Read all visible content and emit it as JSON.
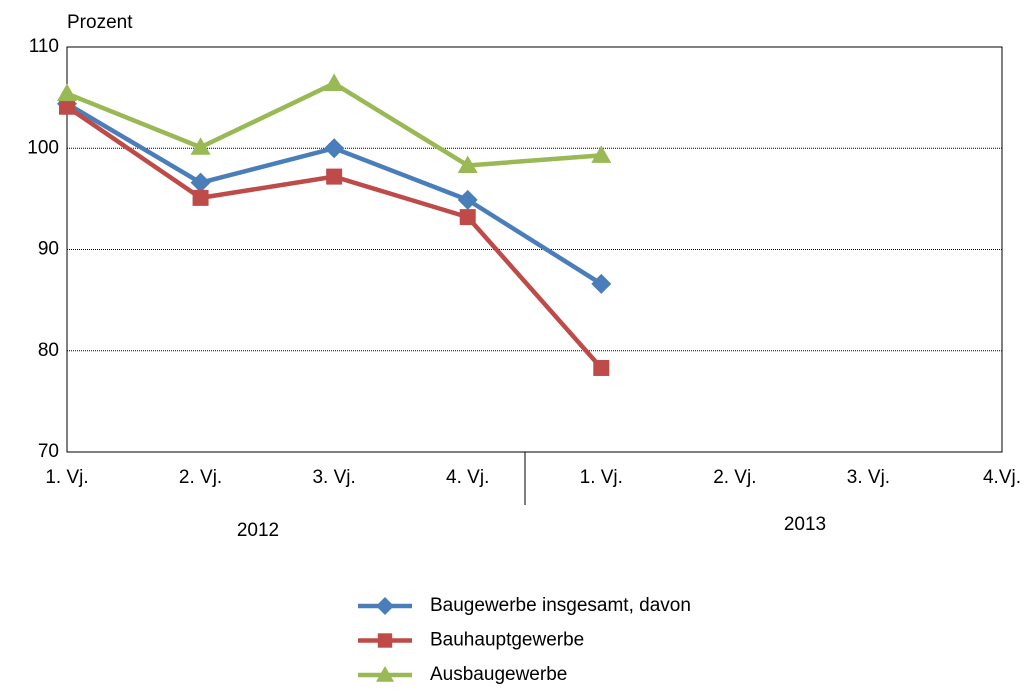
{
  "chart_data": {
    "type": "line",
    "y_label": "Prozent",
    "categories": [
      "1. Vj.",
      "2. Vj.",
      "3. Vj.",
      "4. Vj.",
      "1. Vj.",
      "2. Vj.",
      "3. Vj.",
      "4.Vj."
    ],
    "year_labels": [
      "2012",
      "2013"
    ],
    "series": [
      {
        "name": "Baugewerbe insgesamt, davon",
        "color": "#4a7ebb",
        "marker": "diamond",
        "values": [
          104.4,
          96.6,
          100,
          94.9,
          86.6,
          null,
          null,
          null
        ]
      },
      {
        "name": "Bauhauptgewerbe",
        "color": "#be4b48",
        "marker": "square",
        "values": [
          104.1,
          95.1,
          97.2,
          93.2,
          78.3,
          null,
          null,
          null
        ]
      },
      {
        "name": "Ausbaugewerbe",
        "color": "#98b954",
        "marker": "triangle",
        "values": [
          105.4,
          100.1,
          106.4,
          98.3,
          99.3,
          null,
          null,
          null
        ]
      }
    ],
    "ylim": [
      70,
      110
    ],
    "yticks": [
      70,
      80,
      90,
      100,
      110
    ],
    "grid": true
  }
}
